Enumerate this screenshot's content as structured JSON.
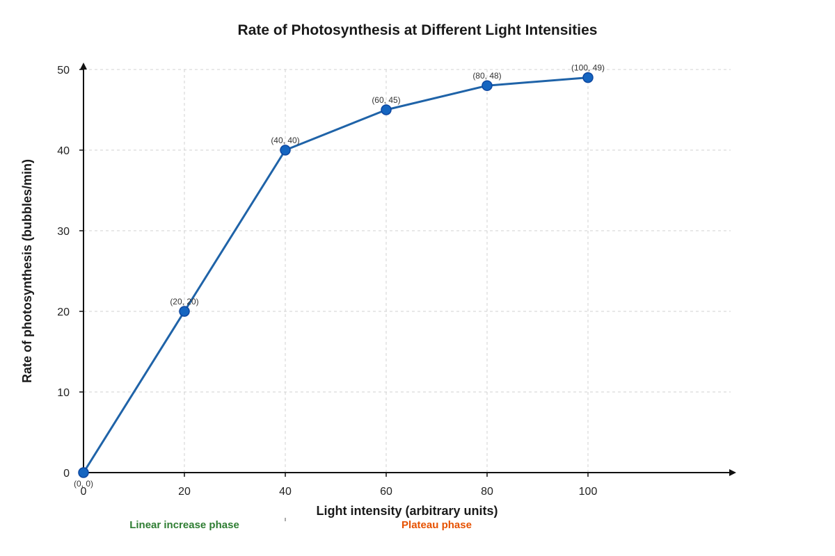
{
  "chart_data": {
    "type": "line",
    "title": "Rate of Photosynthesis at Different Light Intensities",
    "xlabel": "Light intensity (arbitrary units)",
    "ylabel": "Rate of photosynthesis (bubbles/min)",
    "xlim": [
      0,
      100
    ],
    "ylim": [
      0,
      50
    ],
    "x_ticks": [
      0,
      20,
      40,
      60,
      80,
      100
    ],
    "y_ticks": [
      0,
      10,
      20,
      30,
      40,
      50
    ],
    "grid": true,
    "series": [
      {
        "x": [
          0,
          20,
          40,
          60,
          80,
          100
        ],
        "y": [
          0,
          20,
          40,
          45,
          48,
          49
        ],
        "point_labels": [
          "(0, 0)",
          "(20, 20)",
          "(40, 40)",
          "(60, 45)",
          "(80, 48)",
          "(100, 49)"
        ],
        "color": "#1f63a8",
        "marker_color": "#1565c0"
      }
    ],
    "phases": [
      {
        "label": "Linear increase phase",
        "x_start": 0,
        "x_end": 40,
        "color": "#2e7d32"
      },
      {
        "label": "Plateau phase",
        "x_start": 40,
        "x_end": 100,
        "color": "#e65100"
      }
    ]
  }
}
